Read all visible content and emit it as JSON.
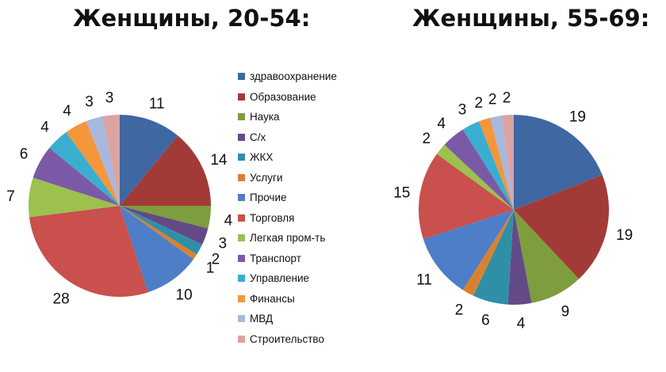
{
  "chart_data": [
    {
      "type": "pie",
      "title": "Женщины, 20-54:",
      "categories": [
        "здравоохранение",
        "Образование",
        "Наука",
        "С/х",
        "ЖКХ",
        "Услуги",
        "Прочие",
        "Торговля",
        "Легкая пром-ть",
        "Транспорт",
        "Управление",
        "Финансы",
        "МВД",
        "Строительство"
      ],
      "values": [
        11,
        14,
        4,
        3,
        2,
        1,
        10,
        28,
        7,
        6,
        4,
        4,
        3,
        3
      ],
      "legend": "right"
    },
    {
      "type": "pie",
      "title": "Женщины, 55-69:",
      "categories": [
        "здравоохранение",
        "Образование",
        "Наука",
        "С/х",
        "ЖКХ",
        "Услуги",
        "Прочие",
        "Торговля",
        "Легкая пром-ть",
        "Транспорт",
        "Управление",
        "Финансы",
        "МВД",
        "Строительство"
      ],
      "values": [
        19,
        19,
        9,
        4,
        6,
        2,
        11,
        15,
        2,
        4,
        3,
        2,
        2,
        2
      ]
    }
  ],
  "colors": [
    "#3F67A2",
    "#A23A38",
    "#7E9D3D",
    "#634A87",
    "#2F8FA6",
    "#D9812F",
    "#4E7EC7",
    "#C9504C",
    "#9CC14F",
    "#7A5AA6",
    "#3AAED0",
    "#F4963A",
    "#A6B8DE",
    "#DCA3A3"
  ]
}
